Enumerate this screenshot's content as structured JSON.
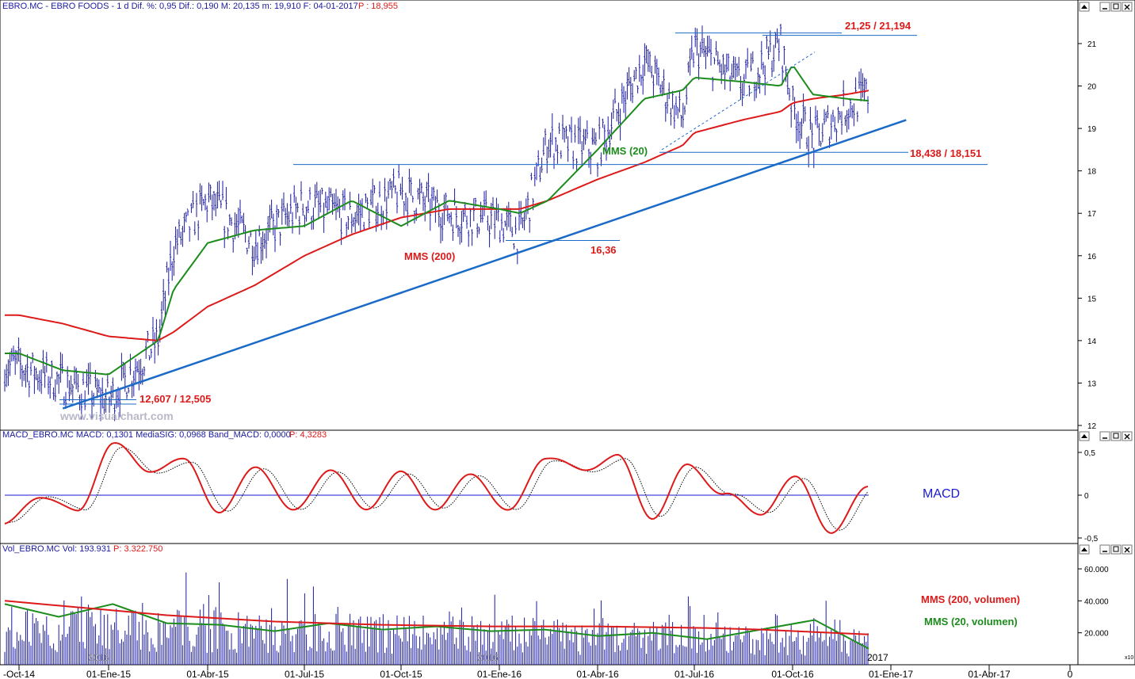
{
  "panels": {
    "price": {
      "title": "EBRO.MC - EBRO FOODS - 1 d Dif. %: 0,95 Dif.: 0,190 M: 20,135 m: 19,910 F: 04-01-2017",
      "last": "P : 18,955",
      "yticks": [
        "21",
        "20",
        "19",
        "18",
        "17",
        "16",
        "15",
        "14",
        "13",
        "12"
      ],
      "watermark": "www.visualchart.com",
      "annotations": {
        "top": "21,25 / 21,194",
        "support": "18,438 / 18,151",
        "low_jan16": "16,36",
        "low_start": "12,607 / 12,505",
        "mms20": "MMS (20)",
        "mms200": "MMS (200)"
      }
    },
    "macd": {
      "title": "MACD_EBRO.MC MACD: 0,1301 MediaSIG: 0,0968 Band_MACD: 0,0000",
      "last": "P: 4,3283",
      "yticks": [
        "0,5",
        "0",
        "-0,5"
      ],
      "label": "MACD"
    },
    "volume": {
      "title": "Vol_EBRO.MC Vol: 193.931",
      "last": "P: 3.322.750",
      "yticks": [
        "60.000",
        "40.000",
        "20.000"
      ],
      "label_200": "MMS (200, volumen)",
      "label_20": "MMS (20, volumen)",
      "year_2016": "2016",
      "year_2016b": "2016",
      "year_2017": "2017",
      "scale": "x10"
    }
  },
  "xaxis": {
    "labels": [
      "-Oct-14",
      "01-Ene-15",
      "01-Abr-15",
      "01-Jul-15",
      "01-Oct-15",
      "01-Ene-16",
      "01-Abr-16",
      "01-Jul-16",
      "01-Oct-16",
      "01-Ene-17",
      "01-Abr-17",
      "0"
    ]
  },
  "colors": {
    "price_bars": "#1a1aa0",
    "mms20": "#1c8c1c",
    "mms200": "#dd1a1a",
    "trendline": "#1a6ac8",
    "annotation_red": "#dd1a1a",
    "macd_line": "#dd1a1a",
    "volume_bars": "#1a1aa0"
  },
  "chart_data": [
    {
      "type": "bar",
      "subtype": "ohlc",
      "title": "EBRO.MC - EBRO FOODS - 1 d",
      "ylim": [
        12,
        21.5
      ],
      "x": [
        "2014-10-01",
        "2014-11-15",
        "2015-01-01",
        "2015-02-15",
        "2015-03-01",
        "2015-04-01",
        "2015-05-15",
        "2015-07-01",
        "2015-08-15",
        "2015-10-01",
        "2015-11-15",
        "2016-01-01",
        "2016-01-20",
        "2016-02-15",
        "2016-04-01",
        "2016-05-15",
        "2016-06-20",
        "2016-07-01",
        "2016-08-15",
        "2016-09-20",
        "2016-10-01",
        "2016-10-20",
        "2016-11-20",
        "2017-01-04"
      ],
      "series": [
        {
          "name": "MMS (20)",
          "values": [
            13.7,
            13.3,
            13.2,
            14.0,
            15.2,
            16.3,
            16.6,
            16.7,
            17.3,
            16.7,
            17.3,
            17.1,
            17.0,
            17.3,
            18.5,
            19.7,
            19.9,
            20.2,
            20.1,
            20.0,
            20.5,
            19.8,
            19.7,
            19.6
          ]
        },
        {
          "name": "MMS (200)",
          "values": [
            14.6,
            14.4,
            14.1,
            14.0,
            14.2,
            14.8,
            15.3,
            16.0,
            16.5,
            16.9,
            17.1,
            17.1,
            17.1,
            17.3,
            17.8,
            18.2,
            18.6,
            18.9,
            19.2,
            19.4,
            19.6,
            19.7,
            19.8,
            20.0
          ]
        },
        {
          "name": "Close",
          "values": [
            13.4,
            13.0,
            12.6,
            14.0,
            16.2,
            17.3,
            16.3,
            17.2,
            16.9,
            17.5,
            17.0,
            16.8,
            16.5,
            18.7,
            18.5,
            20.6,
            19.2,
            20.9,
            20.0,
            21.0,
            19.5,
            18.7,
            19.5,
            20.1
          ]
        }
      ],
      "lines": [
        {
          "name": "trendline",
          "from": [
            "2014-11-15",
            12.4
          ],
          "to": [
            "2017-01-15",
            19.2
          ]
        },
        {
          "name": "support",
          "values": [
            18.438,
            18.151
          ]
        },
        {
          "name": "resistance",
          "values": [
            21.25,
            21.194
          ]
        },
        {
          "name": "low",
          "value": 16.36
        },
        {
          "name": "start_low",
          "values": [
            12.607,
            12.505
          ]
        }
      ]
    },
    {
      "type": "line",
      "title": "MACD_EBRO.MC",
      "ylim": [
        -0.6,
        0.6
      ],
      "series": [
        {
          "name": "MACD",
          "values": [
            -0.35,
            0.0,
            -0.2,
            0.6,
            0.3,
            0.4,
            -0.2,
            0.35,
            -0.2,
            0.3,
            -0.15,
            0.25,
            -0.15,
            0.25,
            -0.2,
            0.45,
            0.3,
            0.45,
            -0.25,
            0.35,
            0.0,
            -0.2,
            0.2,
            -0.45,
            0.13
          ]
        }
      ]
    },
    {
      "type": "bar",
      "title": "Vol_EBRO.MC",
      "ylim": [
        0,
        65000
      ],
      "series": [
        {
          "name": "MMS (200, volumen)",
          "values": [
            40000,
            37000,
            34000,
            31000,
            29000,
            27000,
            26000,
            25000,
            24500,
            24000,
            24000,
            24000,
            23500,
            23000,
            22000,
            20500,
            19000
          ]
        },
        {
          "name": "MMS (20, volumen)",
          "values": [
            38000,
            30000,
            38000,
            26000,
            25000,
            21000,
            26000,
            22000,
            24000,
            21000,
            22000,
            18000,
            20000,
            16000,
            22000,
            28000,
            10000
          ]
        }
      ]
    }
  ]
}
